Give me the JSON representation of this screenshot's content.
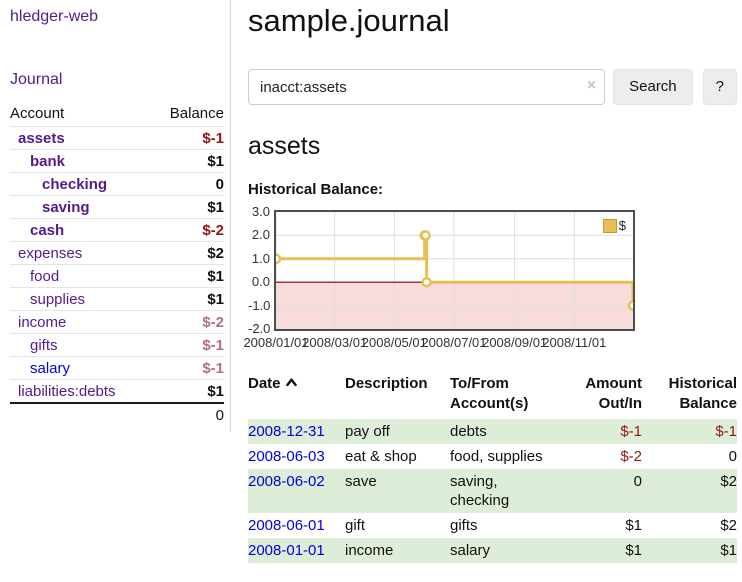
{
  "app": {
    "title": "hledger-web",
    "journal_nav": "Journal"
  },
  "sidebar": {
    "accounts_header": "Account",
    "balance_header": "Balance",
    "rows": [
      {
        "account": "assets",
        "balance": "$-1",
        "depth": 0,
        "emphasis": true,
        "balance_color": "negative",
        "link_color": "purple"
      },
      {
        "account": "bank",
        "balance": "$1",
        "depth": 1,
        "emphasis": true,
        "balance_color": "normal",
        "link_color": "purple"
      },
      {
        "account": "checking",
        "balance": "0",
        "depth": 2,
        "emphasis": true,
        "balance_color": "normal",
        "link_color": "purple"
      },
      {
        "account": "saving",
        "balance": "$1",
        "depth": 2,
        "emphasis": true,
        "balance_color": "normal",
        "link_color": "purple"
      },
      {
        "account": "cash",
        "balance": "$-2",
        "depth": 1,
        "emphasis": true,
        "balance_color": "negative",
        "link_color": "purple"
      },
      {
        "account": "expenses",
        "balance": "$2",
        "depth": 0,
        "emphasis": false,
        "balance_color": "normal",
        "link_color": "purple"
      },
      {
        "account": "food",
        "balance": "$1",
        "depth": 1,
        "emphasis": false,
        "balance_color": "normal",
        "link_color": "purple"
      },
      {
        "account": "supplies",
        "balance": "$1",
        "depth": 1,
        "emphasis": false,
        "balance_color": "normal",
        "link_color": "purple"
      },
      {
        "account": "income",
        "balance": "$-2",
        "depth": 0,
        "emphasis": false,
        "balance_color": "muted-negative",
        "link_color": "purple"
      },
      {
        "account": "gifts",
        "balance": "$-1",
        "depth": 1,
        "emphasis": false,
        "balance_color": "muted-negative",
        "link_color": "purple"
      },
      {
        "account": "salary",
        "balance": "$-1",
        "depth": 1,
        "emphasis": false,
        "balance_color": "muted-negative",
        "link_color": "blue"
      },
      {
        "account": "liabilities:debts",
        "balance": "$1",
        "depth": 0,
        "emphasis": false,
        "balance_color": "normal",
        "link_color": "purple"
      }
    ],
    "total": "0"
  },
  "main": {
    "title": "sample.journal",
    "search": {
      "value": "inacct:assets",
      "clear_icon": "×",
      "button_label": "Search",
      "help_label": "?"
    },
    "account_title": "assets",
    "chart_label": "Historical Balance:"
  },
  "chart_data": {
    "type": "line",
    "title": "Historical Balance:",
    "series": [
      {
        "name": "$",
        "style": "step-after",
        "points": [
          {
            "date": "2008-01-01",
            "value": 1
          },
          {
            "date": "2008-06-01",
            "value": 2
          },
          {
            "date": "2008-06-02",
            "value": 2
          },
          {
            "date": "2008-06-03",
            "value": 0
          },
          {
            "date": "2008-12-31",
            "value": -1
          }
        ]
      }
    ],
    "x_range": [
      "2008-01-01",
      "2008-12-31"
    ],
    "y_range": [
      -2,
      3
    ],
    "y_ticks": [
      "3.0",
      "2.0",
      "1.0",
      "0.0",
      "-1.0",
      "-2.0"
    ],
    "x_ticks": [
      "2008/01/01",
      "2008/03/01",
      "2008/05/01",
      "2008/07/01",
      "2008/09/01",
      "2008/11/01"
    ],
    "legend": "$",
    "legend_position": "top-right",
    "grid": true,
    "negative_region_shaded": true
  },
  "register": {
    "columns": [
      "Date",
      "Description",
      "To/From Account(s)",
      "Amount Out/In",
      "Historical Balance"
    ],
    "sort": {
      "column": "Date",
      "direction": "ascending"
    },
    "rows": [
      {
        "date": "2008-12-31",
        "description": "pay off",
        "accounts": "debts",
        "amount": "$-1",
        "amount_negative": true,
        "balance": "$-1",
        "balance_negative": true
      },
      {
        "date": "2008-06-03",
        "description": "eat & shop",
        "accounts": "food, supplies",
        "amount": "$-2",
        "amount_negative": true,
        "balance": "0",
        "balance_negative": false
      },
      {
        "date": "2008-06-02",
        "description": "save",
        "accounts": "saving, checking",
        "amount": "0",
        "amount_negative": false,
        "balance": "$2",
        "balance_negative": false
      },
      {
        "date": "2008-06-01",
        "description": "gift",
        "accounts": "gifts",
        "amount": "$1",
        "amount_negative": false,
        "balance": "$2",
        "balance_negative": false
      },
      {
        "date": "2008-01-01",
        "description": "income",
        "accounts": "salary",
        "amount": "$1",
        "amount_negative": false,
        "balance": "$1",
        "balance_negative": false
      }
    ]
  },
  "colors": {
    "link_purple": "#551a8b",
    "link_blue": "#0000e0",
    "negative": "#981414",
    "muted_negative": "#b4707c",
    "row_stripe_green": "#ddedd8",
    "chart_line_gold": "#e6c054",
    "chart_negative_area": "#f8dcdc",
    "chart_zero_line": "#a33535",
    "chart_border": "#4d4d4d",
    "chart_grid": "#dedede",
    "button_background": "#ededed"
  }
}
